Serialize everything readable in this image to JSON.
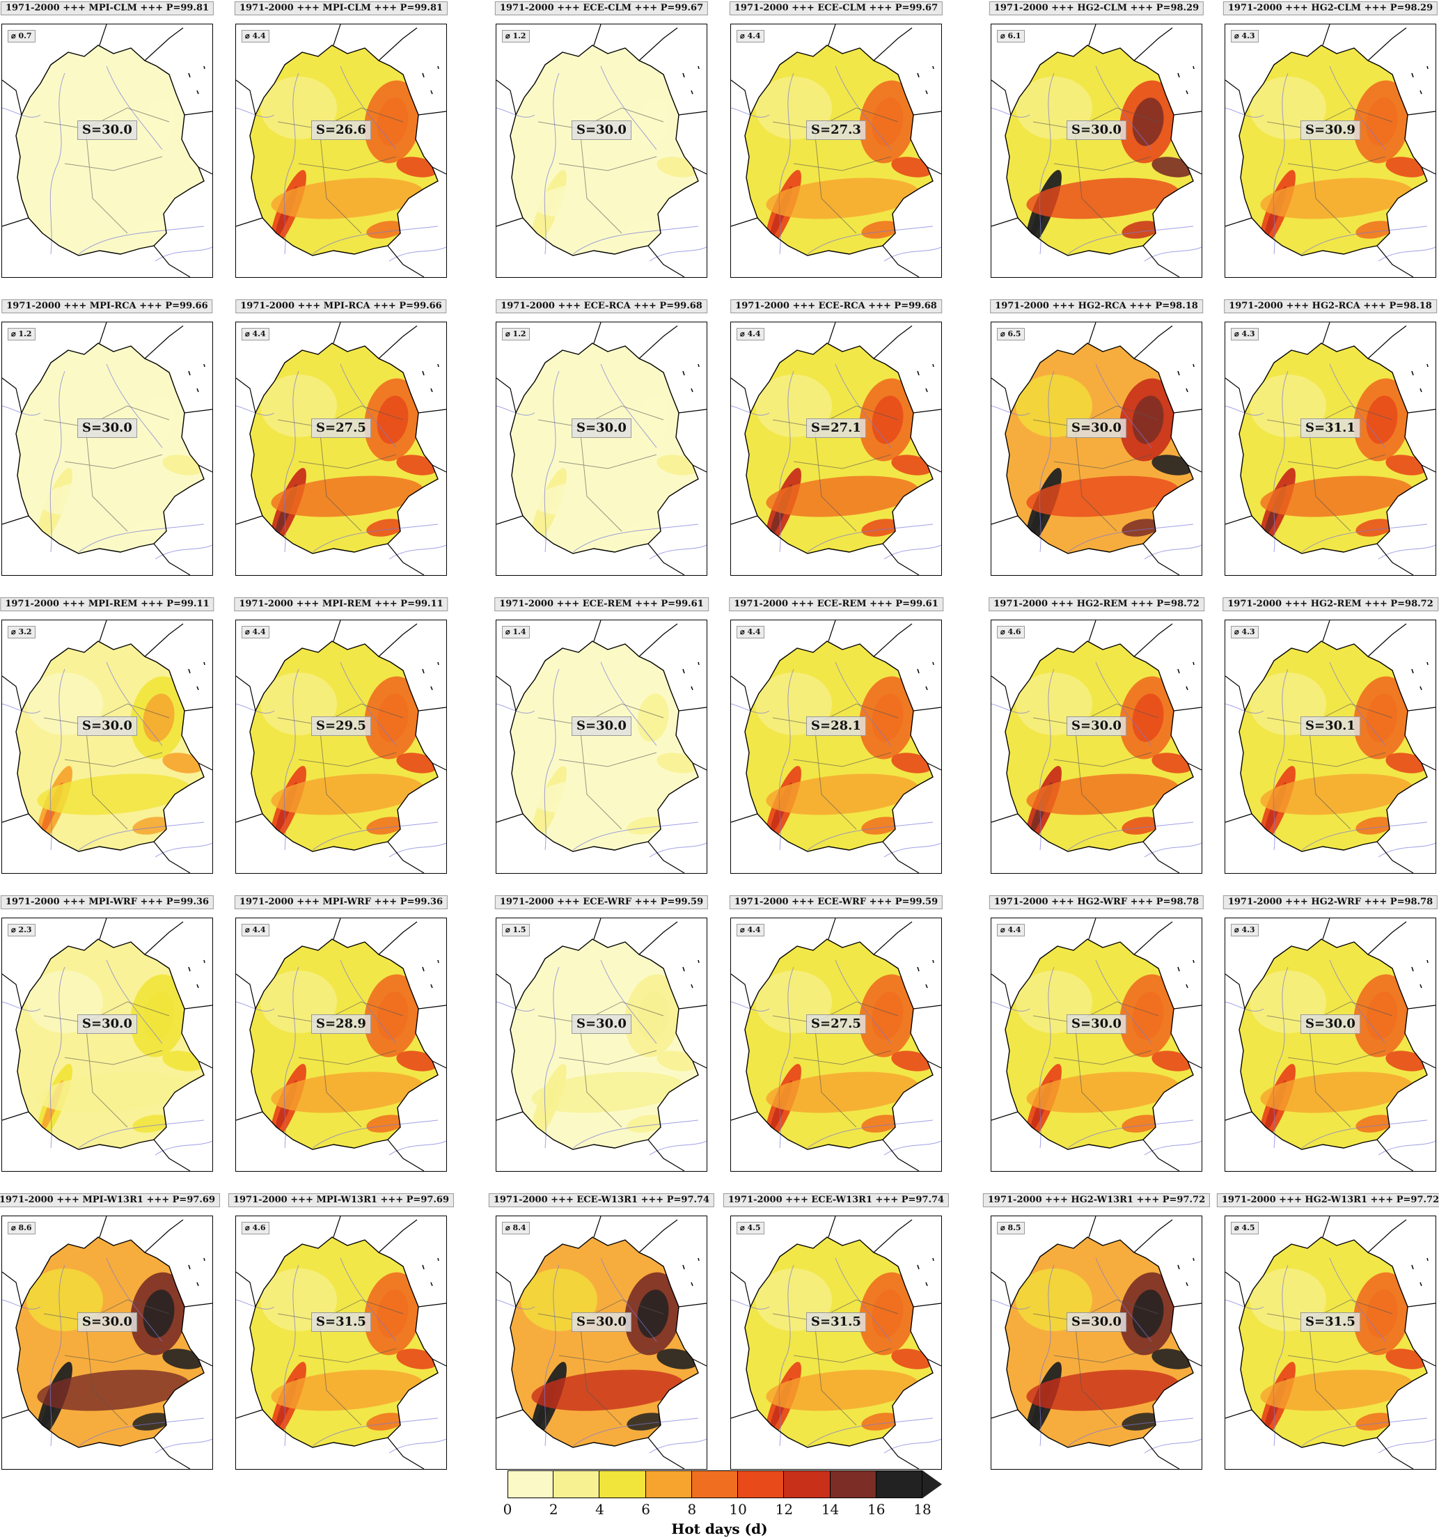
{
  "panels": [
    {
      "title": "1971-2000 +++ MPI-CLM +++ P=99.81",
      "avg": "⌀ 0.7",
      "s_label": "S=30.0",
      "intensity": 0.05
    },
    {
      "title": "1971-2000 +++ MPI-CLM +++ P=99.81",
      "avg": "⌀ 4.4",
      "s_label": "S=26.6",
      "intensity": 0.5
    },
    {
      "title": "1971-2000 +++ ECE-CLM +++ P=99.67",
      "avg": "⌀ 1.2",
      "s_label": "S=30.0",
      "intensity": 0.1
    },
    {
      "title": "1971-2000 +++ ECE-CLM +++ P=99.67",
      "avg": "⌀ 4.4",
      "s_label": "S=27.3",
      "intensity": 0.5
    },
    {
      "title": "1971-2000 +++ HG2-CLM +++ P=98.29",
      "avg": "⌀ 6.1",
      "s_label": "S=30.0",
      "intensity": 0.72
    },
    {
      "title": "1971-2000 +++ HG2-CLM +++ P=98.29",
      "avg": "⌀ 4.3",
      "s_label": "S=30.9",
      "intensity": 0.5
    },
    {
      "title": "1971-2000 +++ MPI-RCA +++ P=99.66",
      "avg": "⌀ 1.2",
      "s_label": "S=30.0",
      "intensity": 0.1
    },
    {
      "title": "1971-2000 +++ MPI-RCA +++ P=99.66",
      "avg": "⌀ 4.4",
      "s_label": "S=27.5",
      "intensity": 0.55
    },
    {
      "title": "1971-2000 +++ ECE-RCA +++ P=99.68",
      "avg": "⌀ 1.2",
      "s_label": "S=30.0",
      "intensity": 0.1
    },
    {
      "title": "1971-2000 +++ ECE-RCA +++ P=99.68",
      "avg": "⌀ 4.4",
      "s_label": "S=27.1",
      "intensity": 0.55
    },
    {
      "title": "1971-2000 +++ HG2-RCA +++ P=98.18",
      "avg": "⌀ 6.5",
      "s_label": "S=30.0",
      "intensity": 0.78
    },
    {
      "title": "1971-2000 +++ HG2-RCA +++ P=98.18",
      "avg": "⌀ 4.3",
      "s_label": "S=31.1",
      "intensity": 0.55
    },
    {
      "title": "1971-2000 +++ MPI-REM +++ P=99.11",
      "avg": "⌀ 3.2",
      "s_label": "S=30.0",
      "intensity": 0.35
    },
    {
      "title": "1971-2000 +++ MPI-REM +++ P=99.11",
      "avg": "⌀ 4.4",
      "s_label": "S=29.5",
      "intensity": 0.5
    },
    {
      "title": "1971-2000 +++ ECE-REM +++ P=99.61",
      "avg": "⌀ 1.4",
      "s_label": "S=30.0",
      "intensity": 0.12
    },
    {
      "title": "1971-2000 +++ ECE-REM +++ P=99.61",
      "avg": "⌀ 4.4",
      "s_label": "S=28.1",
      "intensity": 0.5
    },
    {
      "title": "1971-2000 +++ HG2-REM +++ P=98.72",
      "avg": "⌀ 4.6",
      "s_label": "S=30.0",
      "intensity": 0.55
    },
    {
      "title": "1971-2000 +++ HG2-REM +++ P=98.72",
      "avg": "⌀ 4.3",
      "s_label": "S=30.1",
      "intensity": 0.5
    },
    {
      "title": "1971-2000 +++ MPI-WRF +++ P=99.36",
      "avg": "⌀ 2.3",
      "s_label": "S=30.0",
      "intensity": 0.25
    },
    {
      "title": "1971-2000 +++ MPI-WRF +++ P=99.36",
      "avg": "⌀ 4.4",
      "s_label": "S=28.9",
      "intensity": 0.5
    },
    {
      "title": "1971-2000 +++ ECE-WRF +++ P=99.59",
      "avg": "⌀ 1.5",
      "s_label": "S=30.0",
      "intensity": 0.14
    },
    {
      "title": "1971-2000 +++ ECE-WRF +++ P=99.59",
      "avg": "⌀ 4.4",
      "s_label": "S=27.5",
      "intensity": 0.5
    },
    {
      "title": "1971-2000 +++ HG2-WRF +++ P=98.78",
      "avg": "⌀ 4.4",
      "s_label": "S=30.0",
      "intensity": 0.5
    },
    {
      "title": "1971-2000 +++ HG2-WRF +++ P=98.78",
      "avg": "⌀ 4.3",
      "s_label": "S=30.0",
      "intensity": 0.5
    },
    {
      "title": "1971-2000 +++ MPI-W13R1 +++ P=97.69",
      "avg": "⌀ 8.6",
      "s_label": "S=30.0",
      "intensity": 0.92
    },
    {
      "title": "1971-2000 +++ MPI-W13R1 +++ P=97.69",
      "avg": "⌀ 4.6",
      "s_label": "S=31.5",
      "intensity": 0.5
    },
    {
      "title": "1971-2000 +++ ECE-W13R1 +++ P=97.74",
      "avg": "⌀ 8.4",
      "s_label": "S=30.0",
      "intensity": 0.9
    },
    {
      "title": "1971-2000 +++ ECE-W13R1 +++ P=97.74",
      "avg": "⌀ 4.5",
      "s_label": "S=31.5",
      "intensity": 0.5
    },
    {
      "title": "1971-2000 +++ HG2-W13R1 +++ P=97.72",
      "avg": "⌀ 8.5",
      "s_label": "S=30.0",
      "intensity": 0.9
    },
    {
      "title": "1971-2000 +++ HG2-W13R1 +++ P=97.72",
      "avg": "⌀ 4.5",
      "s_label": "S=31.5",
      "intensity": 0.5
    }
  ],
  "colorbar": {
    "label": "Hot days (d)",
    "ticks": [
      "0",
      "2",
      "4",
      "6",
      "8",
      "10",
      "12",
      "14",
      "16",
      "18"
    ],
    "colors": [
      "#fbf9c6",
      "#f8f192",
      "#f1e43a",
      "#f6a42e",
      "#f06e1f",
      "#e84a1a",
      "#c8301a",
      "#7b2d26",
      "#222222"
    ],
    "extend_color": "#222222"
  }
}
